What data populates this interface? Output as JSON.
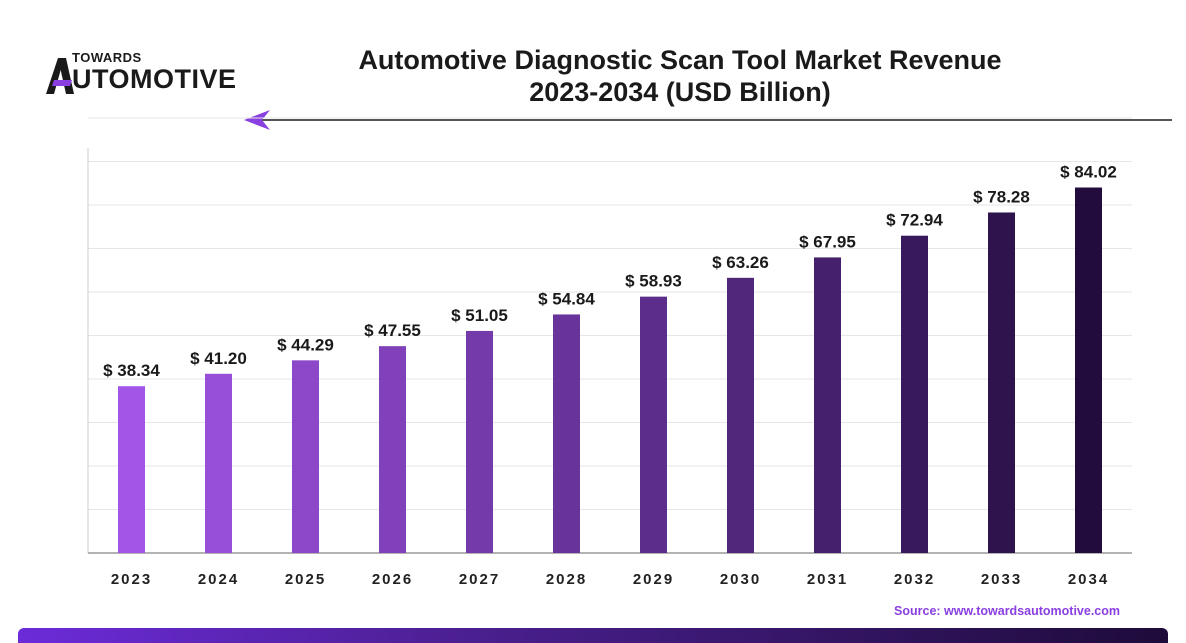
{
  "brand": {
    "top": "TOWARDS",
    "bottom": "UTOMOTIVE"
  },
  "source_text": "Source: www.towardsautomotive.com",
  "colors": {
    "bar_light": "#a355e8",
    "bar_dark": "#220c3e",
    "accent": "#8a3fe0"
  },
  "chart_data": {
    "type": "bar",
    "title": "Automotive Diagnostic Scan Tool Market Revenue",
    "subtitle": "2023-2034 (USD Billion)",
    "categories": [
      "2023",
      "2024",
      "2025",
      "2026",
      "2027",
      "2028",
      "2029",
      "2030",
      "2031",
      "2032",
      "2033",
      "2034"
    ],
    "values": [
      38.34,
      41.2,
      44.29,
      47.55,
      51.05,
      54.84,
      58.93,
      63.26,
      67.95,
      72.94,
      78.28,
      84.02
    ],
    "labels": [
      "$ 38.34",
      "$ 41.20",
      "$ 44.29",
      "$ 47.55",
      "$ 51.05",
      "$ 54.84",
      "$ 58.93",
      "$ 63.26",
      "$ 67.95",
      "$ 72.94",
      "$ 78.28",
      "$ 84.02"
    ],
    "xlabel": "",
    "ylabel": "",
    "ylim": [
      0,
      100
    ],
    "grid": true
  }
}
